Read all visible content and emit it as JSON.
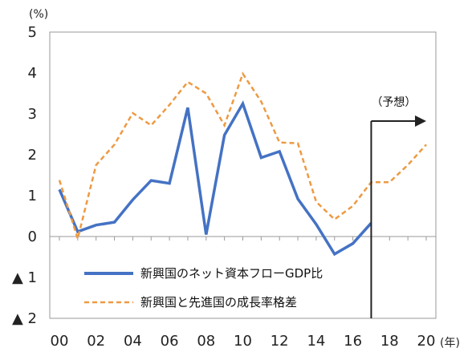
{
  "chart_data": {
    "type": "line",
    "y_unit_label": "(%)",
    "x_unit_label": "(年)",
    "ylim": [
      -2,
      5
    ],
    "y_ticks": [
      {
        "value": 5,
        "label": "5"
      },
      {
        "value": 4,
        "label": "4"
      },
      {
        "value": 3,
        "label": "3"
      },
      {
        "value": 2,
        "label": "2"
      },
      {
        "value": 1,
        "label": "1"
      },
      {
        "value": 0,
        "label": "0"
      },
      {
        "value": -1,
        "label": "▲ 1"
      },
      {
        "value": -2,
        "label": "▲ 2"
      }
    ],
    "xlim": [
      2000,
      2020
    ],
    "x_ticks": [
      {
        "value": 2000,
        "label": "00"
      },
      {
        "value": 2002,
        "label": "02"
      },
      {
        "value": 2004,
        "label": "04"
      },
      {
        "value": 2006,
        "label": "06"
      },
      {
        "value": 2008,
        "label": "08"
      },
      {
        "value": 2010,
        "label": "10"
      },
      {
        "value": 2012,
        "label": "12"
      },
      {
        "value": 2014,
        "label": "14"
      },
      {
        "value": 2016,
        "label": "16"
      },
      {
        "value": 2018,
        "label": "18"
      },
      {
        "value": 2020,
        "label": "20"
      }
    ],
    "grid": false,
    "legend_position": "bottom-center",
    "series": [
      {
        "name": "新興国のネット資本フローGDP比",
        "color": "#4472c4",
        "style": "solid",
        "x": [
          2000,
          2001,
          2002,
          2003,
          2004,
          2005,
          2006,
          2007,
          2008,
          2009,
          2010,
          2011,
          2012,
          2013,
          2014,
          2015,
          2016,
          2017
        ],
        "values": [
          1.15,
          0.12,
          0.28,
          0.35,
          0.9,
          1.37,
          1.3,
          3.15,
          0.05,
          2.48,
          3.25,
          1.93,
          2.08,
          0.92,
          0.3,
          -0.43,
          -0.17,
          0.33
        ]
      },
      {
        "name": "新興国と先進国の成長率格差",
        "color": "#ed9a43",
        "style": "dashed",
        "x": [
          2000,
          2001,
          2002,
          2003,
          2004,
          2005,
          2006,
          2007,
          2008,
          2009,
          2010,
          2011,
          2012,
          2013,
          2014,
          2015,
          2016,
          2017,
          2018,
          2019,
          2020
        ],
        "values": [
          1.38,
          -0.05,
          1.75,
          2.25,
          3.02,
          2.72,
          3.22,
          3.78,
          3.5,
          2.72,
          3.98,
          3.3,
          2.3,
          2.28,
          0.85,
          0.42,
          0.75,
          1.33,
          1.33,
          1.75,
          2.25
        ]
      }
    ],
    "annotations": [
      {
        "text": "（予想）",
        "x": 2017
      }
    ]
  }
}
